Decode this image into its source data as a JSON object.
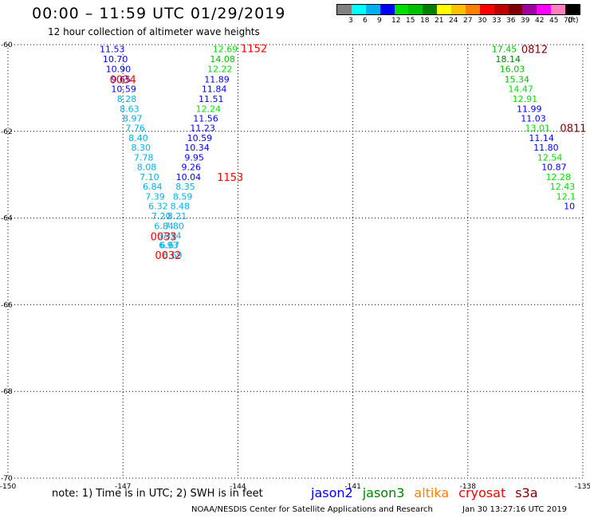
{
  "header": {
    "title": "00:00 – 11:59 UTC 01/29/2019",
    "subtitle": "12 hour collection of altimeter wave heights"
  },
  "colorbar": {
    "unit": "(ft)",
    "colors": [
      "#808080",
      "#00ffff",
      "#00b0f0",
      "#0000ff",
      "#00e000",
      "#00c000",
      "#008000",
      "#ffff00",
      "#ffc000",
      "#ff8000",
      "#ff0000",
      "#c00000",
      "#800000",
      "#a000a0",
      "#ff00ff",
      "#ff80c0",
      "#000000"
    ],
    "ticks": [
      "3",
      "6",
      "9",
      "12",
      "15",
      "18",
      "21",
      "24",
      "27",
      "30",
      "33",
      "36",
      "39",
      "42",
      "45",
      "70"
    ]
  },
  "satellites": [
    {
      "name": "jason2",
      "color": "#0000ff"
    },
    {
      "name": "jason3",
      "color": "#008000"
    },
    {
      "name": "altika",
      "color": "#ff8000"
    },
    {
      "name": "cryosat",
      "color": "#ff0000"
    },
    {
      "name": "s3a",
      "color": "#800000"
    }
  ],
  "footer": {
    "note": "note: 1) Time is in UTC; 2) SWH is in feet",
    "credit": "NOAA/NESDIS Center for Satellite Applications and Research",
    "generated": "Jan 30 13:27:16 UTC 2019"
  },
  "chart_data": {
    "type": "scatter",
    "xlim": [
      -150,
      -135
    ],
    "ylim": [
      -70,
      -60
    ],
    "x_ticks": [
      -150,
      -147,
      -144,
      -141,
      -138,
      -135
    ],
    "y_ticks": [
      -60,
      -62,
      -64,
      -66,
      -68,
      -70
    ],
    "x_tick_labels": [
      "-150",
      "-147",
      "-144",
      "-141",
      "-138",
      "-135"
    ],
    "y_tick_labels": [
      "-60",
      "-62",
      "-64",
      "-66",
      "-68",
      "-70"
    ],
    "grid": "dotted",
    "series": [
      {
        "color_scale": "swh",
        "points": [
          {
            "lon": -147.28,
            "lat": -60.1,
            "v": "11.53",
            "c": "#0000ff"
          },
          {
            "lon": -147.2,
            "lat": -60.33,
            "v": "10.70",
            "c": "#0000ff"
          },
          {
            "lon": -147.12,
            "lat": -60.56,
            "v": "10.90",
            "c": "#0000ff"
          },
          {
            "lon": -147.05,
            "lat": -60.8,
            "v": "9.65",
            "c": "#0000ff"
          },
          {
            "lon": -146.98,
            "lat": -61.02,
            "v": "10.59",
            "c": "#0000ff"
          },
          {
            "lon": -146.9,
            "lat": -61.25,
            "v": "8.28",
            "c": "#00b0f0"
          },
          {
            "lon": -146.83,
            "lat": -61.48,
            "v": "8.63",
            "c": "#00b0f0"
          },
          {
            "lon": -146.75,
            "lat": -61.7,
            "v": "8.97",
            "c": "#00b0f0"
          },
          {
            "lon": -146.68,
            "lat": -61.92,
            "v": "7.76",
            "c": "#00b0f0"
          },
          {
            "lon": -146.6,
            "lat": -62.15,
            "v": "8.40",
            "c": "#00b0f0"
          },
          {
            "lon": -146.53,
            "lat": -62.37,
            "v": "8.30",
            "c": "#00b0f0"
          },
          {
            "lon": -146.46,
            "lat": -62.6,
            "v": "7.78",
            "c": "#00b0f0"
          },
          {
            "lon": -146.38,
            "lat": -62.82,
            "v": "8.08",
            "c": "#00b0f0"
          },
          {
            "lon": -146.31,
            "lat": -63.05,
            "v": "7.10",
            "c": "#00b0f0"
          },
          {
            "lon": -146.23,
            "lat": -63.27,
            "v": "6.84",
            "c": "#00b0f0"
          },
          {
            "lon": -146.16,
            "lat": -63.5,
            "v": "7.39",
            "c": "#00b0f0"
          },
          {
            "lon": -146.08,
            "lat": -63.72,
            "v": "6.32",
            "c": "#00b0f0"
          },
          {
            "lon": -146.0,
            "lat": -63.95,
            "v": "7.20",
            "c": "#00b0f0"
          },
          {
            "lon": -145.93,
            "lat": -64.18,
            "v": "6.84",
            "c": "#00b0f0"
          },
          {
            "lon": -145.86,
            "lat": -64.4,
            "v": "6.31",
            "c": "#00b0f0"
          },
          {
            "lon": -145.78,
            "lat": -64.62,
            "v": "6.67",
            "c": "#00b0f0"
          },
          {
            "lon": -145.71,
            "lat": -64.85,
            "v": "6.69",
            "c": "#00b0f0"
          },
          {
            "lon": -144.33,
            "lat": -60.1,
            "v": "12.69",
            "c": "#00e000"
          },
          {
            "lon": -144.4,
            "lat": -60.33,
            "v": "14.08",
            "c": "#00c000"
          },
          {
            "lon": -144.47,
            "lat": -60.56,
            "v": "12.22",
            "c": "#00e000"
          },
          {
            "lon": -144.55,
            "lat": -60.8,
            "v": "11.89",
            "c": "#0000ff"
          },
          {
            "lon": -144.62,
            "lat": -61.02,
            "v": "11.84",
            "c": "#0000ff"
          },
          {
            "lon": -144.7,
            "lat": -61.25,
            "v": "11.51",
            "c": "#0000ff"
          },
          {
            "lon": -144.77,
            "lat": -61.48,
            "v": "12.24",
            "c": "#00e000"
          },
          {
            "lon": -144.84,
            "lat": -61.7,
            "v": "11.56",
            "c": "#0000ff"
          },
          {
            "lon": -144.92,
            "lat": -61.92,
            "v": "11.23",
            "c": "#0000ff"
          },
          {
            "lon": -145.0,
            "lat": -62.15,
            "v": "10.59",
            "c": "#0000ff"
          },
          {
            "lon": -145.07,
            "lat": -62.37,
            "v": "10.34",
            "c": "#0000ff"
          },
          {
            "lon": -145.14,
            "lat": -62.6,
            "v": "9.95",
            "c": "#0000ff"
          },
          {
            "lon": -145.22,
            "lat": -62.82,
            "v": "9.26",
            "c": "#0000ff"
          },
          {
            "lon": -145.29,
            "lat": -63.05,
            "v": "10.04",
            "c": "#0000ff"
          },
          {
            "lon": -145.37,
            "lat": -63.27,
            "v": "8.35",
            "c": "#00b0f0"
          },
          {
            "lon": -145.44,
            "lat": -63.5,
            "v": "8.59",
            "c": "#00b0f0"
          },
          {
            "lon": -145.51,
            "lat": -63.72,
            "v": "8.48",
            "c": "#00b0f0"
          },
          {
            "lon": -145.59,
            "lat": -63.95,
            "v": "8.21",
            "c": "#00b0f0"
          },
          {
            "lon": -145.66,
            "lat": -64.18,
            "v": "7.80",
            "c": "#00b0f0"
          },
          {
            "lon": -145.73,
            "lat": -64.4,
            "v": "7.54",
            "c": "#00b0f0"
          },
          {
            "lon": -145.81,
            "lat": -64.62,
            "v": "6.93",
            "c": "#00b0f0"
          },
          {
            "lon": -137.05,
            "lat": -60.1,
            "v": "17.45",
            "c": "#00c000"
          },
          {
            "lon": -136.95,
            "lat": -60.33,
            "v": "18.14",
            "c": "#008000"
          },
          {
            "lon": -136.84,
            "lat": -60.56,
            "v": "16.03",
            "c": "#00c000"
          },
          {
            "lon": -136.72,
            "lat": -60.8,
            "v": "15.34",
            "c": "#00c000"
          },
          {
            "lon": -136.62,
            "lat": -61.02,
            "v": "14.47",
            "c": "#00e000"
          },
          {
            "lon": -136.51,
            "lat": -61.25,
            "v": "12.91",
            "c": "#00e000"
          },
          {
            "lon": -136.4,
            "lat": -61.48,
            "v": "11.99",
            "c": "#0000ff"
          },
          {
            "lon": -136.29,
            "lat": -61.7,
            "v": "11.03",
            "c": "#0000ff"
          },
          {
            "lon": -136.18,
            "lat": -61.92,
            "v": "13.01",
            "c": "#00e000"
          },
          {
            "lon": -136.08,
            "lat": -62.15,
            "v": "11.14",
            "c": "#0000ff"
          },
          {
            "lon": -135.96,
            "lat": -62.37,
            "v": "11.80",
            "c": "#0000ff"
          },
          {
            "lon": -135.86,
            "lat": -62.6,
            "v": "12.54",
            "c": "#00e000"
          },
          {
            "lon": -135.75,
            "lat": -62.82,
            "v": "10.87",
            "c": "#0000ff"
          },
          {
            "lon": -135.64,
            "lat": -63.05,
            "v": "12.28",
            "c": "#00e000"
          },
          {
            "lon": -135.53,
            "lat": -63.27,
            "v": "12.43",
            "c": "#00e000"
          },
          {
            "lon": -135.44,
            "lat": -63.5,
            "v": "12.1",
            "c": "#00e000"
          },
          {
            "lon": -135.35,
            "lat": -63.72,
            "v": "10",
            "c": "#0000ff"
          }
        ]
      }
    ],
    "time_labels": [
      {
        "lon": -147.0,
        "lat": -60.8,
        "text": "0034",
        "c": "#ff0000"
      },
      {
        "lon": -145.94,
        "lat": -64.42,
        "text": "0033",
        "c": "#ff0000"
      },
      {
        "lon": -145.82,
        "lat": -64.85,
        "text": "0032",
        "c": "#ff0000"
      },
      {
        "lon": -143.58,
        "lat": -60.08,
        "text": "1152",
        "c": "#ff0000"
      },
      {
        "lon": -144.2,
        "lat": -63.05,
        "text": "1153",
        "c": "#ff0000"
      },
      {
        "lon": -136.26,
        "lat": -60.1,
        "text": "0812",
        "c": "#800000"
      },
      {
        "lon": -135.25,
        "lat": -61.92,
        "text": "0811",
        "c": "#800000"
      }
    ]
  }
}
